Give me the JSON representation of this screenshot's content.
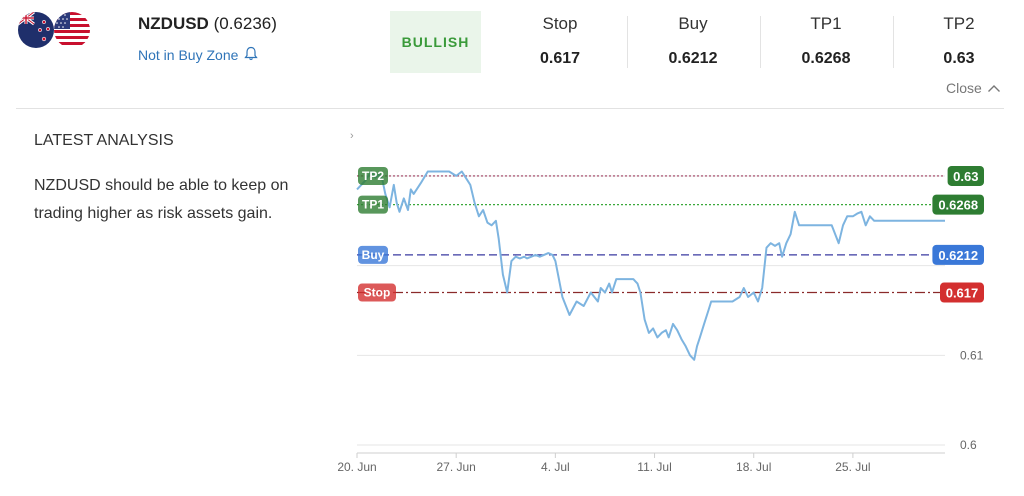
{
  "header": {
    "pair": "NZDUSD",
    "price": "(0.6236)",
    "buy_zone_text": "Not in Buy Zone",
    "signal_badge": "BULLISH",
    "signal_color": "#3a9a3a",
    "stats": [
      {
        "label": "Stop",
        "value": "0.617"
      },
      {
        "label": "Buy",
        "value": "0.6212"
      },
      {
        "label": "TP1",
        "value": "0.6268"
      },
      {
        "label": "TP2",
        "value": "0.63"
      }
    ],
    "close_label": "Close"
  },
  "flags": [
    "new-zealand-flag-icon",
    "usa-flag-icon"
  ],
  "analysis": {
    "heading": "LATEST ANALYSIS",
    "text": "NZDUSD should be able to keep on trading higher as risk assets gain."
  },
  "chart_data": {
    "type": "line",
    "x_tick_labels": [
      "20. Jun",
      "27. Jun",
      "4. Jul",
      "11. Jul",
      "18. Jul",
      "25. Jul"
    ],
    "y_tick_labels": [
      "0.6",
      "0.61"
    ],
    "ylim": [
      0.6,
      0.632
    ],
    "series": [
      {
        "color": "#7db4e0",
        "x": [
          0,
          0.6,
          1.0,
          1.3,
          1.6,
          1.8,
          2.0,
          2.3,
          2.6,
          2.8,
          3.0,
          3.3,
          3.6,
          3.8,
          4.0,
          4.5,
          5.0,
          5.5,
          6.0,
          6.5,
          7.0,
          7.4,
          7.8,
          8.0,
          8.3,
          8.6,
          8.9,
          9.2,
          9.5,
          9.8,
          10.0,
          10.3,
          10.6,
          10.9,
          11.2,
          11.5,
          11.8,
          12.0,
          12.3,
          12.6,
          12.9,
          13.2,
          13.5,
          13.8,
          14.0,
          14.5,
          15.0,
          15.5,
          16.0,
          16.5,
          17.0,
          17.2,
          17.5,
          17.8,
          18.0,
          18.3,
          18.6,
          18.9,
          19.2,
          19.5,
          19.8,
          20.0,
          20.3,
          20.6,
          20.9,
          21.2,
          21.5,
          21.8,
          22.0,
          22.3,
          22.6,
          22.9,
          23.2,
          23.5,
          23.8,
          24.0,
          24.2,
          24.5,
          24.8,
          25.0,
          25.5,
          26.0,
          26.5,
          27.0,
          27.3,
          27.6,
          28.0,
          28.3,
          28.6,
          28.9,
          29.2,
          29.5,
          29.8,
          30.0,
          30.3,
          30.6,
          30.9,
          31.2,
          31.5,
          31.8,
          32.0,
          32.5,
          33.0,
          33.5,
          34.0,
          34.3,
          34.6,
          35.0,
          35.3,
          35.6,
          35.9,
          36.2,
          36.5,
          36.8,
          37.0,
          37.5,
          38.0,
          38.5,
          39.0,
          39.5,
          40.0,
          40.2,
          40.6,
          41.0,
          41.5
        ],
        "values": [
          0.6285,
          0.6295,
          0.6305,
          0.6298,
          0.6302,
          0.6295,
          0.628,
          0.6265,
          0.629,
          0.627,
          0.626,
          0.6275,
          0.6262,
          0.6285,
          0.628,
          0.6292,
          0.6305,
          0.6305,
          0.6305,
          0.6305,
          0.63,
          0.6305,
          0.6295,
          0.629,
          0.627,
          0.6255,
          0.6262,
          0.6248,
          0.6245,
          0.625,
          0.623,
          0.619,
          0.617,
          0.6205,
          0.621,
          0.6208,
          0.621,
          0.6208,
          0.621,
          0.6212,
          0.621,
          0.6212,
          0.6214,
          0.6212,
          0.6205,
          0.6165,
          0.6145,
          0.616,
          0.6155,
          0.617,
          0.616,
          0.6175,
          0.617,
          0.618,
          0.617,
          0.6185,
          0.6185,
          0.6185,
          0.6185,
          0.6185,
          0.618,
          0.617,
          0.614,
          0.6125,
          0.613,
          0.612,
          0.6125,
          0.6128,
          0.612,
          0.6135,
          0.6128,
          0.6118,
          0.611,
          0.61,
          0.6095,
          0.611,
          0.612,
          0.6135,
          0.615,
          0.616,
          0.616,
          0.616,
          0.616,
          0.6165,
          0.6175,
          0.6165,
          0.617,
          0.616,
          0.6175,
          0.622,
          0.6225,
          0.6222,
          0.6225,
          0.621,
          0.6225,
          0.6235,
          0.626,
          0.6245,
          0.6245,
          0.6245,
          0.6245,
          0.6245,
          0.6245,
          0.6245,
          0.6225,
          0.6245,
          0.6255,
          0.6255,
          0.6258,
          0.626,
          0.6245,
          0.6255,
          0.625,
          0.625,
          0.625,
          0.625,
          0.625,
          0.625,
          0.625,
          0.625,
          0.625,
          0.625,
          0.625,
          0.625,
          0.625
        ]
      }
    ],
    "levels": [
      {
        "name": "TP2",
        "value": 0.63,
        "label": "0.63",
        "color": "#2e7d32",
        "line_color": "#9c3b5c",
        "style": "dotted"
      },
      {
        "name": "TP1",
        "value": 0.6268,
        "label": "0.6268",
        "color": "#2e7d32",
        "line_color": "#3aa83a",
        "style": "dotted"
      },
      {
        "name": "Buy",
        "value": 0.6212,
        "label": "0.6212",
        "color": "#3a78d8",
        "line_color": "#3a3aa0",
        "style": "dashed"
      },
      {
        "name": "Stop",
        "value": 0.617,
        "label": "0.617",
        "color": "#d32f2f",
        "line_color": "#8b2a2a",
        "style": "dashdot"
      }
    ]
  }
}
